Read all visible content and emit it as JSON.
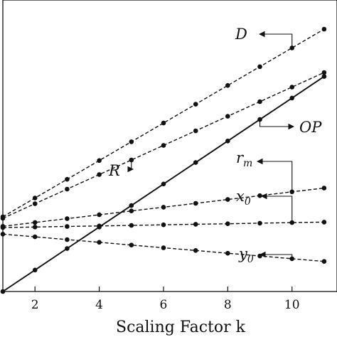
{
  "chart_data": {
    "type": "line",
    "title": "",
    "xlabel": "Scaling Factor k",
    "ylabel": "",
    "xlim": [
      1,
      11.4
    ],
    "ylim": [
      0,
      16
    ],
    "x_ticks": [
      2,
      4,
      6,
      8,
      10
    ],
    "x_tick_labels": [
      "2",
      "4",
      "6",
      "8",
      "10"
    ],
    "grid": false,
    "x": [
      1,
      2,
      3,
      4,
      5,
      6,
      7,
      8,
      9,
      10,
      11
    ],
    "series": [
      {
        "name": "D",
        "style": "dashed",
        "values": [
          4.1,
          5.13,
          6.16,
          7.19,
          8.22,
          9.25,
          10.28,
          11.31,
          12.34,
          13.37,
          14.4
        ]
      },
      {
        "name": "R",
        "style": "dashed",
        "values": [
          4.02,
          4.82,
          5.62,
          6.42,
          7.22,
          8.02,
          8.82,
          9.62,
          10.42,
          11.22,
          12.02
        ]
      },
      {
        "name": "OP",
        "style": "solid",
        "values": [
          0.0,
          1.18,
          2.36,
          3.54,
          4.72,
          5.9,
          7.08,
          8.26,
          9.44,
          10.62,
          11.8
        ]
      },
      {
        "name": "r_m",
        "style": "dashed",
        "values": [
          3.58,
          3.79,
          4.0,
          4.21,
          4.42,
          4.63,
          4.84,
          5.05,
          5.26,
          5.47,
          5.68
        ]
      },
      {
        "name": "x_0",
        "style": "dashed",
        "values": [
          3.51,
          3.54,
          3.57,
          3.6,
          3.63,
          3.66,
          3.69,
          3.72,
          3.75,
          3.78,
          3.81
        ]
      },
      {
        "name": "y_0",
        "style": "dashed",
        "values": [
          3.15,
          3.0,
          2.85,
          2.7,
          2.55,
          2.4,
          2.25,
          2.1,
          1.95,
          1.8,
          1.65
        ]
      }
    ],
    "annotations": [
      {
        "series": "D",
        "text": "D"
      },
      {
        "series": "R",
        "text": "R"
      },
      {
        "series": "OP",
        "text": "OP"
      },
      {
        "series": "r_m",
        "text": "r",
        "sub": "m"
      },
      {
        "series": "x_0",
        "text": "x",
        "sub": "0"
      },
      {
        "series": "y_0",
        "text": "y",
        "sub": "0"
      }
    ]
  }
}
